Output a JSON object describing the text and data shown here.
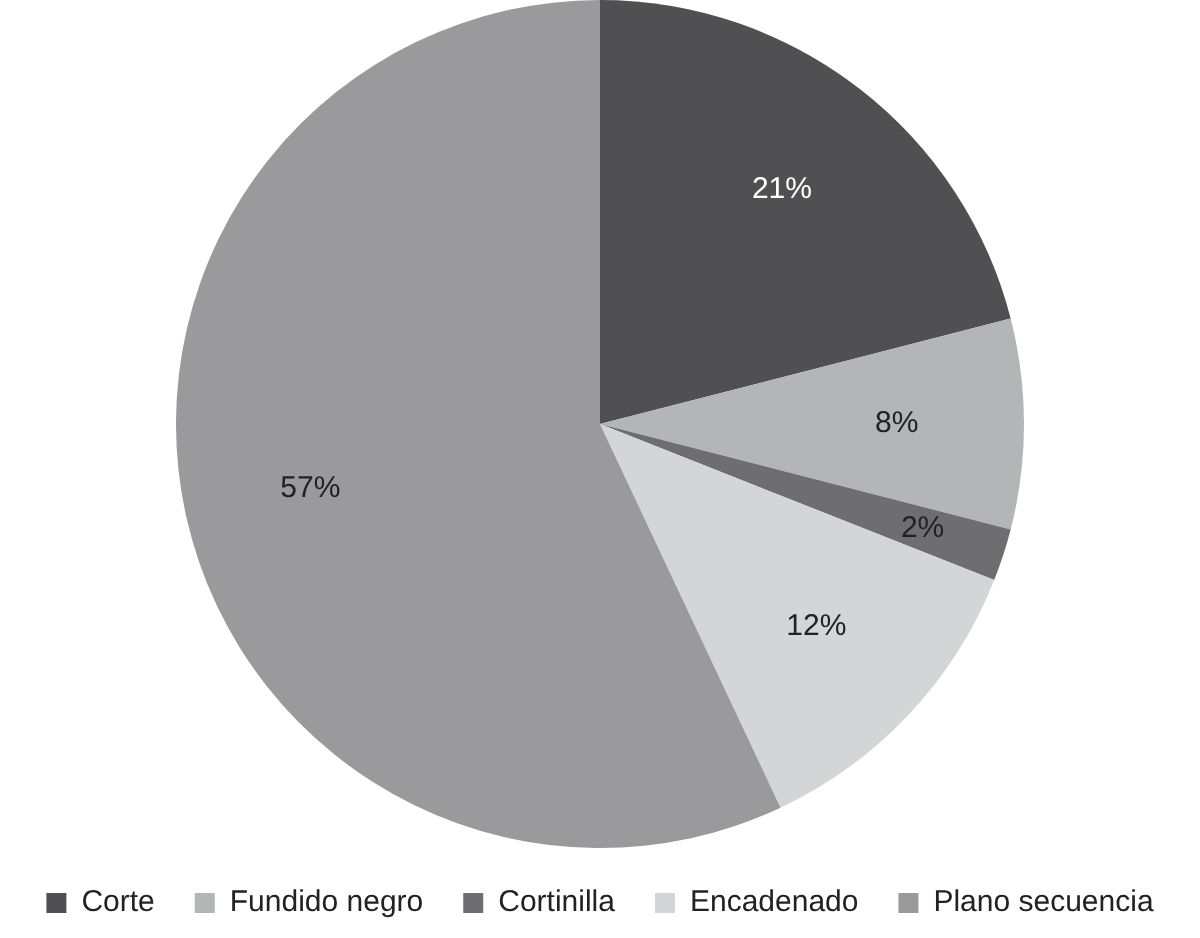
{
  "chart_data": {
    "type": "pie",
    "categories": [
      "Corte",
      "Fundido negro",
      "Cortinilla",
      "Encadenado",
      "Plano secuencia"
    ],
    "values": [
      21,
      8,
      2,
      12,
      57
    ],
    "colors": [
      "#505052",
      "#b4b5b7",
      "#6e6e70",
      "#d4d5d6",
      "#9a9a9c"
    ],
    "value_labels": [
      "21%",
      "8%",
      "2%",
      "12%",
      "57%"
    ],
    "legend": "bottom"
  }
}
